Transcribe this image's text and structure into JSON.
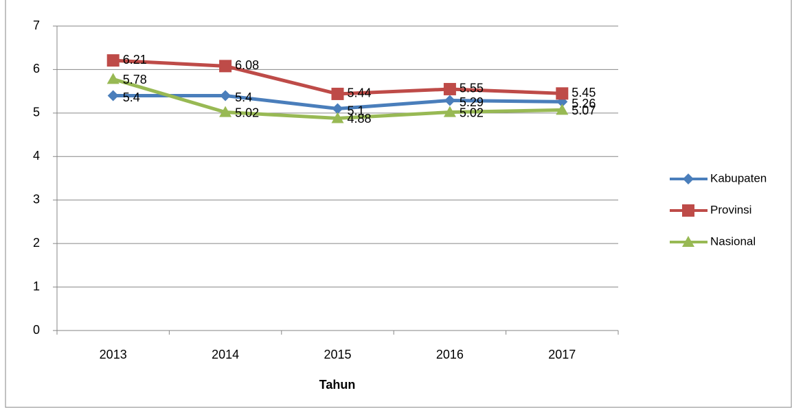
{
  "chart_data": {
    "type": "line",
    "x_label": "Tahun",
    "categories": [
      "2013",
      "2014",
      "2015",
      "2016",
      "2017"
    ],
    "series": [
      {
        "name": "Kabupaten",
        "color": "#4a7ebb",
        "marker": "diamond",
        "values": [
          5.4,
          5.4,
          5.1,
          5.29,
          5.26
        ]
      },
      {
        "name": "Provinsi",
        "color": "#be4b48",
        "marker": "square",
        "values": [
          6.21,
          6.08,
          5.44,
          5.55,
          5.45
        ]
      },
      {
        "name": "Nasional",
        "color": "#98b954",
        "marker": "triangle",
        "values": [
          5.78,
          5.02,
          4.88,
          5.02,
          5.07
        ]
      }
    ],
    "ylim": [
      0,
      7
    ],
    "yticks": [
      0,
      1,
      2,
      3,
      4,
      5,
      6,
      7
    ],
    "grid": true,
    "legend": "right"
  }
}
